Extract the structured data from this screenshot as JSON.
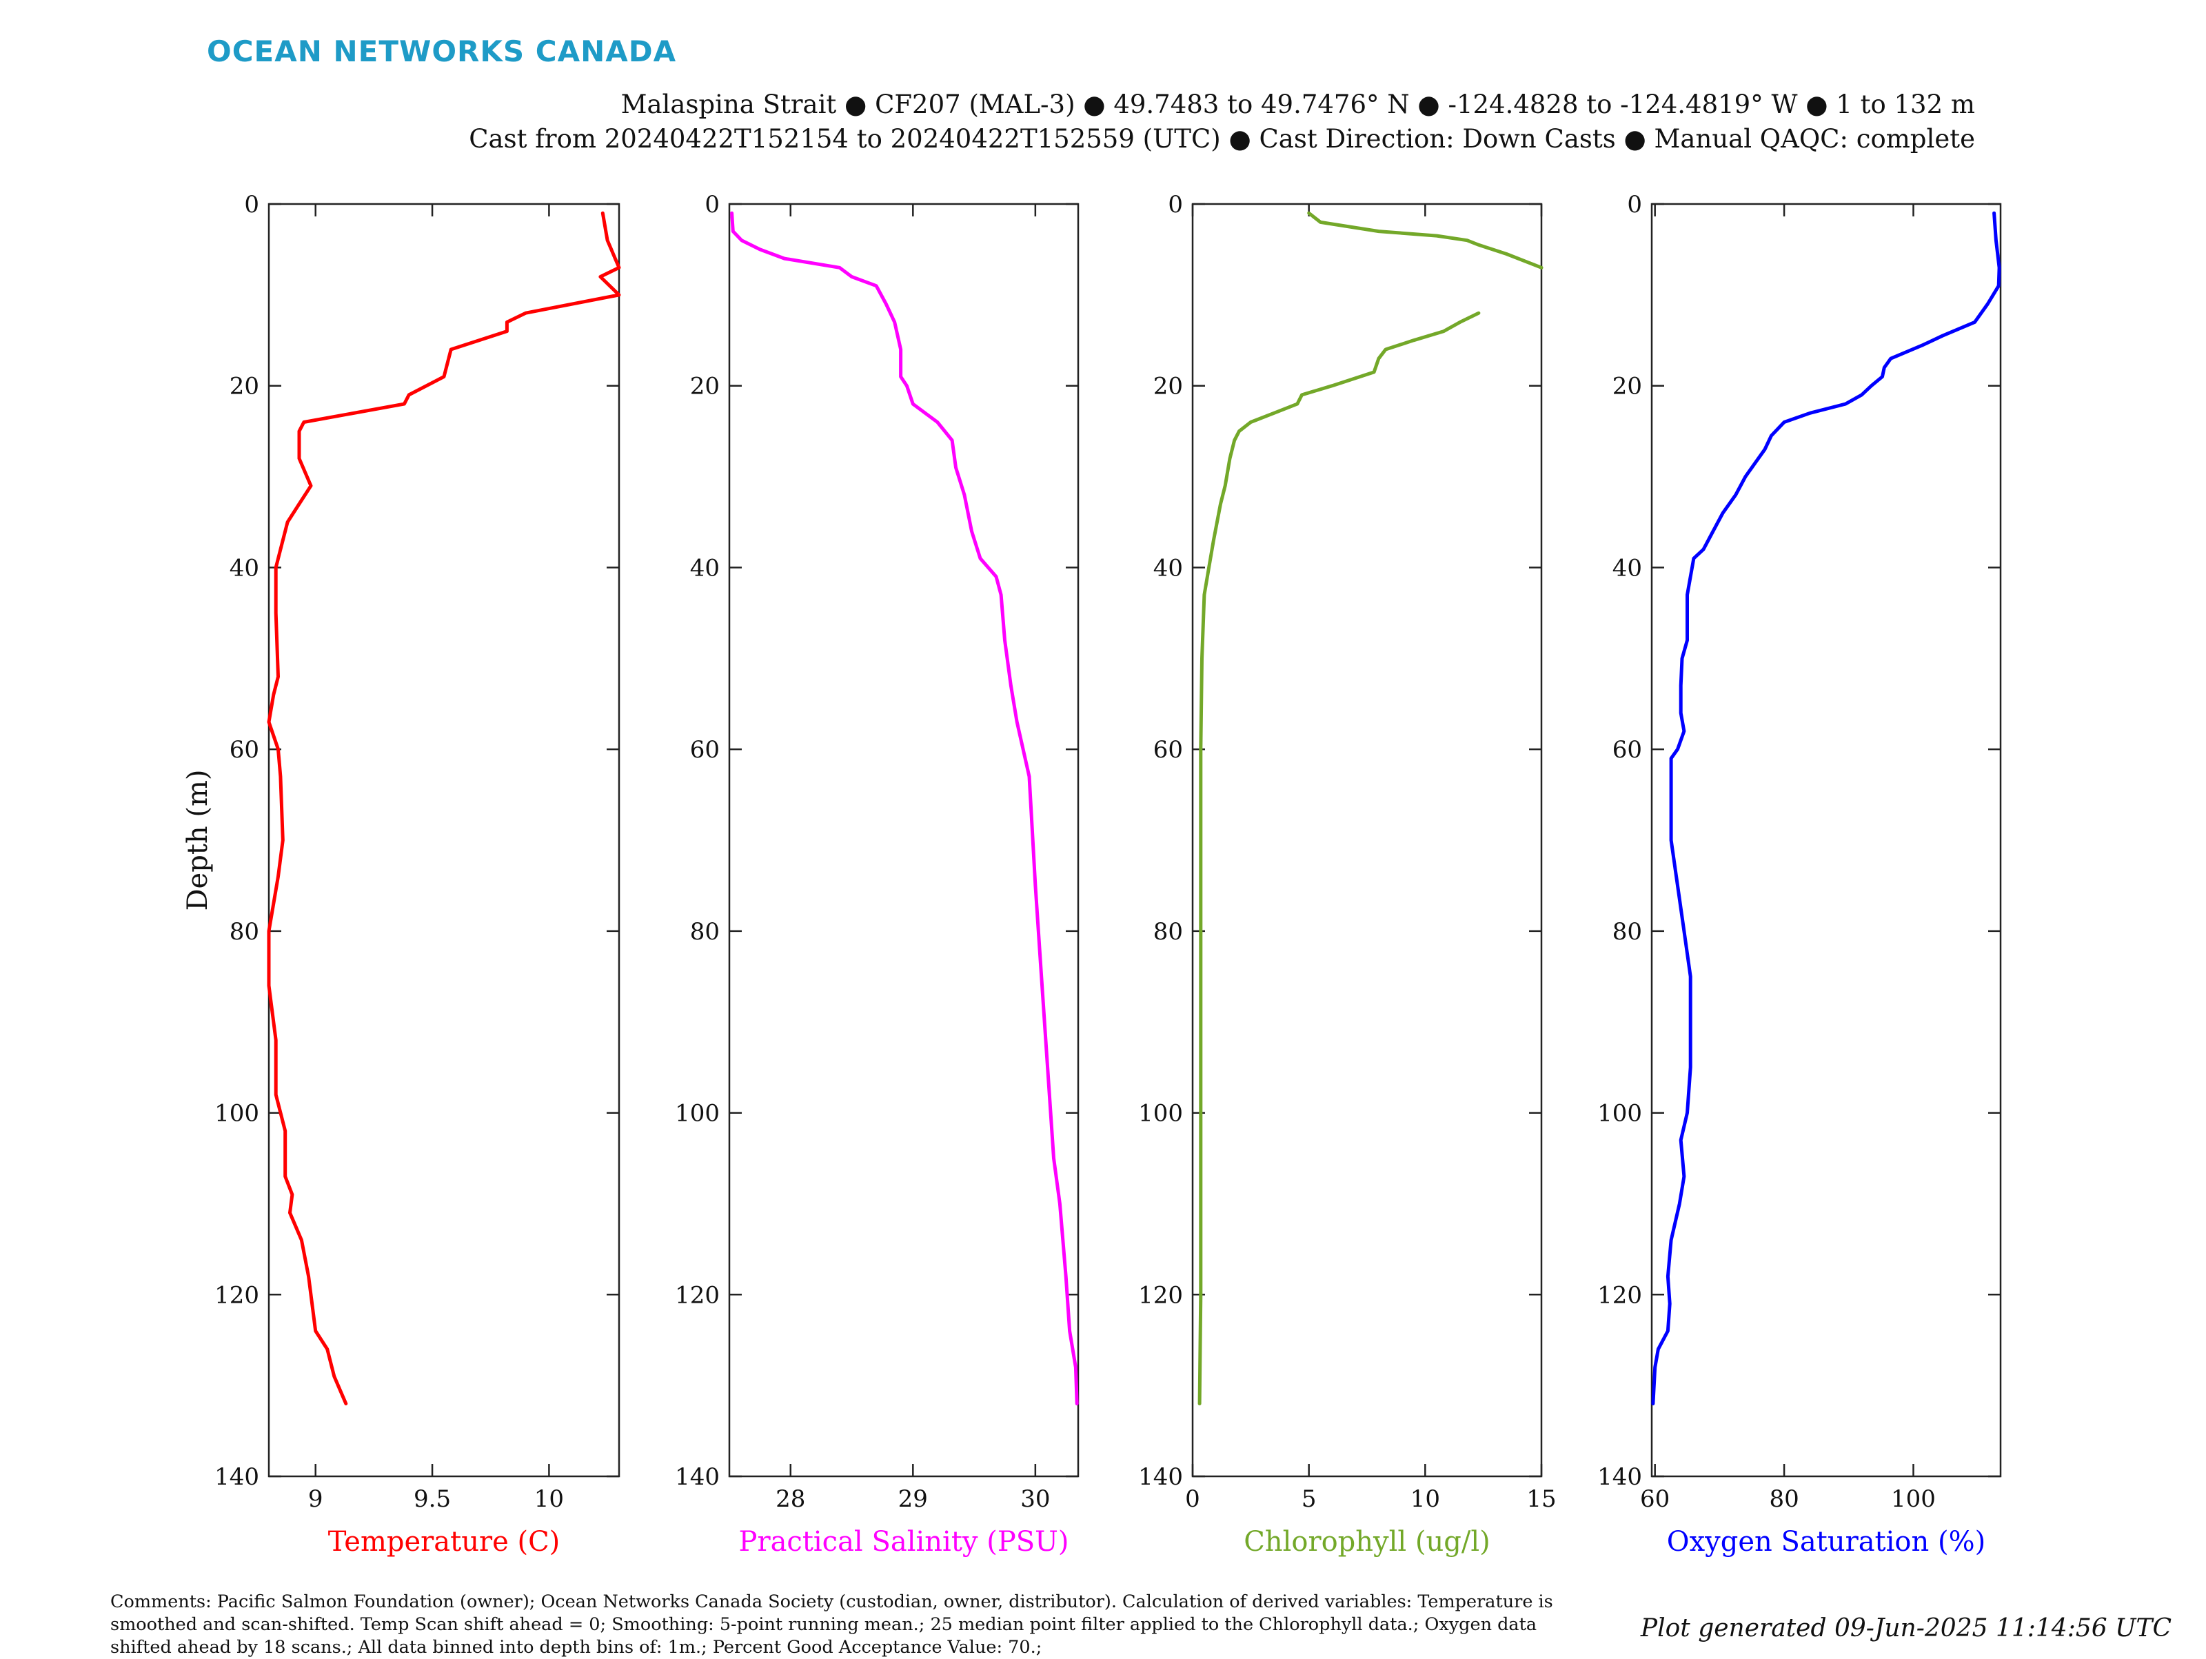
{
  "header": {
    "brand": "OCEAN NETWORKS CANADA",
    "line1": "Malaspina Strait ● CF207 (MAL-3) ● 49.7483 to 49.7476° N ● -124.4828 to -124.4819° W ● 1 to 132 m",
    "line2": "Cast from 20240422T152154 to 20240422T152559 (UTC) ● Cast Direction: Down Casts ● Manual QAQC: complete"
  },
  "footer": {
    "comments": "Comments: Pacific Salmon Foundation (owner); Ocean Networks Canada Society (custodian, owner, distributor). Calculation of derived variables: Temperature is smoothed and scan-shifted. Temp Scan shift ahead = 0; Smoothing: 5-point running mean.; 25 median point filter applied to the Chlorophyll data.; Oxygen data shifted ahead by 18 scans.; All data binned into depth bins of: 1m.; Percent Good Acceptance Value: 70.;",
    "generated": "Plot generated 09-Jun-2025 11:14:56 UTC"
  },
  "chart_data": [
    {
      "type": "line",
      "xlabel": "Temperature (C)",
      "ylabel": "Depth (m)",
      "color": "#ff0000",
      "xlim": [
        8.8,
        10.3
      ],
      "ylim": [
        0,
        140
      ],
      "y_reversed": true,
      "xticks": [
        9,
        9.5,
        10
      ],
      "yticks": [
        0,
        20,
        40,
        60,
        80,
        100,
        120,
        140
      ],
      "series": [
        {
          "points": [
            [
              10.23,
              1
            ],
            [
              10.25,
              4
            ],
            [
              10.3,
              7
            ],
            [
              10.22,
              8
            ],
            [
              10.3,
              10
            ],
            [
              9.9,
              12
            ],
            [
              9.82,
              13
            ],
            [
              9.82,
              14
            ],
            [
              9.58,
              16
            ],
            [
              9.55,
              19
            ],
            [
              9.4,
              21
            ],
            [
              9.38,
              22
            ],
            [
              8.95,
              24
            ],
            [
              8.93,
              25
            ],
            [
              8.93,
              28
            ],
            [
              8.98,
              31
            ],
            [
              8.93,
              33
            ],
            [
              8.88,
              35
            ],
            [
              8.85,
              38
            ],
            [
              8.83,
              40
            ],
            [
              8.83,
              45
            ],
            [
              8.84,
              52
            ],
            [
              8.82,
              54
            ],
            [
              8.8,
              57
            ],
            [
              8.84,
              60
            ],
            [
              8.85,
              63
            ],
            [
              8.86,
              70
            ],
            [
              8.84,
              74
            ],
            [
              8.8,
              80
            ],
            [
              8.8,
              86
            ],
            [
              8.83,
              92
            ],
            [
              8.83,
              98
            ],
            [
              8.87,
              102
            ],
            [
              8.87,
              107
            ],
            [
              8.9,
              109
            ],
            [
              8.89,
              111
            ],
            [
              8.94,
              114
            ],
            [
              8.97,
              118
            ],
            [
              9.0,
              124
            ],
            [
              9.05,
              126
            ],
            [
              9.08,
              129
            ],
            [
              9.13,
              132
            ]
          ]
        }
      ]
    },
    {
      "type": "line",
      "xlabel": "Practical Salinity (PSU)",
      "ylabel": "",
      "color": "#ff00ff",
      "xlim": [
        27.5,
        30.35
      ],
      "ylim": [
        0,
        140
      ],
      "y_reversed": true,
      "xticks": [
        28,
        29,
        30
      ],
      "yticks": [
        0,
        20,
        40,
        60,
        80,
        100,
        120,
        140
      ],
      "series": [
        {
          "points": [
            [
              27.52,
              1
            ],
            [
              27.53,
              3
            ],
            [
              27.6,
              4
            ],
            [
              27.75,
              5
            ],
            [
              27.95,
              6
            ],
            [
              28.4,
              7
            ],
            [
              28.5,
              8
            ],
            [
              28.7,
              9
            ],
            [
              28.78,
              11
            ],
            [
              28.85,
              13
            ],
            [
              28.9,
              16
            ],
            [
              28.9,
              19
            ],
            [
              28.95,
              20
            ],
            [
              29.0,
              22
            ],
            [
              29.2,
              24
            ],
            [
              29.32,
              26
            ],
            [
              29.35,
              29
            ],
            [
              29.42,
              32
            ],
            [
              29.48,
              36
            ],
            [
              29.55,
              39
            ],
            [
              29.68,
              41
            ],
            [
              29.72,
              43
            ],
            [
              29.75,
              48
            ],
            [
              29.8,
              53
            ],
            [
              29.85,
              57
            ],
            [
              29.9,
              60
            ],
            [
              29.95,
              63
            ],
            [
              30.0,
              75
            ],
            [
              30.05,
              85
            ],
            [
              30.1,
              95
            ],
            [
              30.15,
              105
            ],
            [
              30.2,
              110
            ],
            [
              30.25,
              118
            ],
            [
              30.28,
              124
            ],
            [
              30.33,
              128
            ],
            [
              30.34,
              132
            ]
          ]
        }
      ]
    },
    {
      "type": "line",
      "xlabel": "Chlorophyll (ug/l)",
      "ylabel": "",
      "color": "#73a829",
      "xlim": [
        0,
        15
      ],
      "ylim": [
        0,
        140
      ],
      "y_reversed": true,
      "xticks": [
        0,
        5,
        10,
        15
      ],
      "yticks": [
        0,
        20,
        40,
        60,
        80,
        100,
        120,
        140
      ],
      "series": [
        {
          "points": [
            [
              5.0,
              1
            ],
            [
              5.5,
              2
            ],
            [
              8.0,
              3
            ],
            [
              10.5,
              3.5
            ],
            [
              11.8,
              4
            ],
            [
              12.3,
              4.5
            ],
            [
              13.5,
              5.5
            ],
            [
              14.5,
              6.5
            ],
            [
              15.0,
              7
            ]
          ]
        },
        {
          "points": [
            [
              12.3,
              12
            ],
            [
              11.5,
              13
            ],
            [
              10.8,
              14
            ],
            [
              9.5,
              15
            ],
            [
              8.3,
              16
            ],
            [
              8.0,
              17
            ],
            [
              7.8,
              18.5
            ],
            [
              7.2,
              19
            ],
            [
              6.0,
              20
            ],
            [
              4.7,
              21
            ],
            [
              4.5,
              22
            ],
            [
              3.5,
              23
            ],
            [
              2.5,
              24
            ],
            [
              2.0,
              25
            ],
            [
              1.8,
              26
            ],
            [
              1.6,
              28
            ],
            [
              1.4,
              31
            ],
            [
              1.2,
              33
            ],
            [
              0.9,
              37
            ],
            [
              0.7,
              40
            ],
            [
              0.5,
              43
            ],
            [
              0.4,
              50
            ],
            [
              0.35,
              60
            ],
            [
              0.35,
              80
            ],
            [
              0.35,
              100
            ],
            [
              0.35,
              120
            ],
            [
              0.3,
              132
            ]
          ]
        }
      ]
    },
    {
      "type": "line",
      "xlabel": "Oxygen Saturation (%)",
      "ylabel": "",
      "color": "#0000ff",
      "xlim": [
        59.5,
        113.5
      ],
      "ylim": [
        0,
        140
      ],
      "y_reversed": true,
      "xticks": [
        60,
        80,
        100
      ],
      "yticks": [
        0,
        20,
        40,
        60,
        80,
        100,
        120,
        140
      ],
      "series": [
        {
          "points": [
            [
              112.5,
              1
            ],
            [
              112.8,
              4
            ],
            [
              113.3,
              7
            ],
            [
              113.2,
              9
            ],
            [
              111.5,
              11
            ],
            [
              109.5,
              13
            ],
            [
              104.5,
              14.5
            ],
            [
              101.5,
              15.5
            ],
            [
              96.5,
              17
            ],
            [
              95.5,
              18
            ],
            [
              95.2,
              19
            ],
            [
              93.5,
              20
            ],
            [
              92.0,
              21
            ],
            [
              89.5,
              22
            ],
            [
              84.0,
              23
            ],
            [
              80.0,
              24
            ],
            [
              78.0,
              25.5
            ],
            [
              77.0,
              27
            ],
            [
              75.5,
              28.5
            ],
            [
              74.0,
              30
            ],
            [
              72.5,
              32
            ],
            [
              70.5,
              34
            ],
            [
              69.0,
              36
            ],
            [
              67.5,
              38
            ],
            [
              66.0,
              39
            ],
            [
              65.5,
              41
            ],
            [
              65.0,
              43
            ],
            [
              65.0,
              48
            ],
            [
              64.2,
              50
            ],
            [
              64.0,
              53
            ],
            [
              64.0,
              56
            ],
            [
              64.5,
              58
            ],
            [
              63.5,
              60
            ],
            [
              62.5,
              61
            ],
            [
              62.5,
              70
            ],
            [
              63.5,
              75
            ],
            [
              64.5,
              80
            ],
            [
              65.5,
              85
            ],
            [
              65.5,
              95
            ],
            [
              65.0,
              100
            ],
            [
              64.0,
              103
            ],
            [
              64.5,
              107
            ],
            [
              63.8,
              110
            ],
            [
              62.5,
              114
            ],
            [
              62.0,
              118
            ],
            [
              62.3,
              121
            ],
            [
              62.0,
              124
            ],
            [
              60.5,
              126
            ],
            [
              60.0,
              128
            ],
            [
              59.7,
              132
            ]
          ]
        }
      ]
    }
  ]
}
